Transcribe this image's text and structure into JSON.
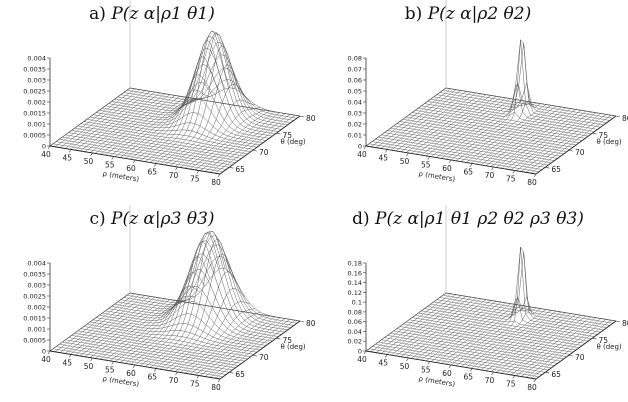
{
  "chart_data": [
    {
      "type": "surface",
      "title_prefix": "a)",
      "title_expr": "P(z α|ρ1 θ1)",
      "xlabel": "ρ (meters)",
      "ylabel": "θ (deg)",
      "x_ticks": [
        "40",
        "45",
        "50",
        "55",
        "60",
        "65",
        "70",
        "75",
        "80"
      ],
      "y_ticks": [
        "65",
        "70",
        "75",
        "80"
      ],
      "z_ticks": [
        "0",
        "0.0005",
        "0.001",
        "0.0015",
        "0.002",
        "0.0025",
        "0.003",
        "0.0035",
        "0.004"
      ],
      "z_max": 0.004,
      "peak": {
        "rho": 64,
        "theta": 76,
        "height": 0.004,
        "spread_rho": 3.2,
        "spread_theta": 2.2
      }
    },
    {
      "type": "surface",
      "title_prefix": "b)",
      "title_expr": "P(z α|ρ2 θ2)",
      "xlabel": "ρ (meters)",
      "ylabel": "θ (deg)",
      "x_ticks": [
        "40",
        "45",
        "50",
        "55",
        "60",
        "65",
        "70",
        "75",
        "80"
      ],
      "y_ticks": [
        "65",
        "70",
        "75",
        "80"
      ],
      "z_ticks": [
        "0",
        "0.01",
        "0.02",
        "0.03",
        "0.04",
        "0.05",
        "0.06",
        "0.07",
        "0.08"
      ],
      "z_max": 0.08,
      "peak": {
        "rho": 61,
        "theta": 77,
        "height": 0.075,
        "spread_rho": 0.7,
        "spread_theta": 0.7
      }
    },
    {
      "type": "surface",
      "title_prefix": "c)",
      "title_expr": "P(z α|ρ3 θ3)",
      "xlabel": "ρ (meters)",
      "ylabel": "θ (deg)",
      "x_ticks": [
        "40",
        "45",
        "50",
        "55",
        "60",
        "65",
        "70",
        "75",
        "80"
      ],
      "y_ticks": [
        "65",
        "70",
        "75",
        "80"
      ],
      "z_ticks": [
        "0",
        "0.0005",
        "0.001",
        "0.0015",
        "0.002",
        "0.0025",
        "0.003",
        "0.0035",
        "0.004"
      ],
      "z_max": 0.004,
      "peak": {
        "rho": 62,
        "theta": 77,
        "height": 0.004,
        "spread_rho": 3.6,
        "spread_theta": 2.4
      }
    },
    {
      "type": "surface",
      "title_prefix": "d)",
      "title_expr": "P(z α|ρ1 θ1 ρ2 θ2 ρ3 θ3)",
      "xlabel": "ρ (meters)",
      "ylabel": "θ (deg)",
      "x_ticks": [
        "40",
        "45",
        "50",
        "55",
        "60",
        "65",
        "70",
        "75",
        "80"
      ],
      "y_ticks": [
        "65",
        "70",
        "75",
        "80"
      ],
      "z_ticks": [
        "0",
        "0.02",
        "0.04",
        "0.06",
        "0.08",
        "0.1",
        "0.12",
        "0.14",
        "0.16",
        "0.18"
      ],
      "z_max": 0.18,
      "peak": {
        "rho": 61,
        "theta": 77,
        "height": 0.17,
        "spread_rho": 0.6,
        "spread_theta": 0.6
      }
    }
  ]
}
